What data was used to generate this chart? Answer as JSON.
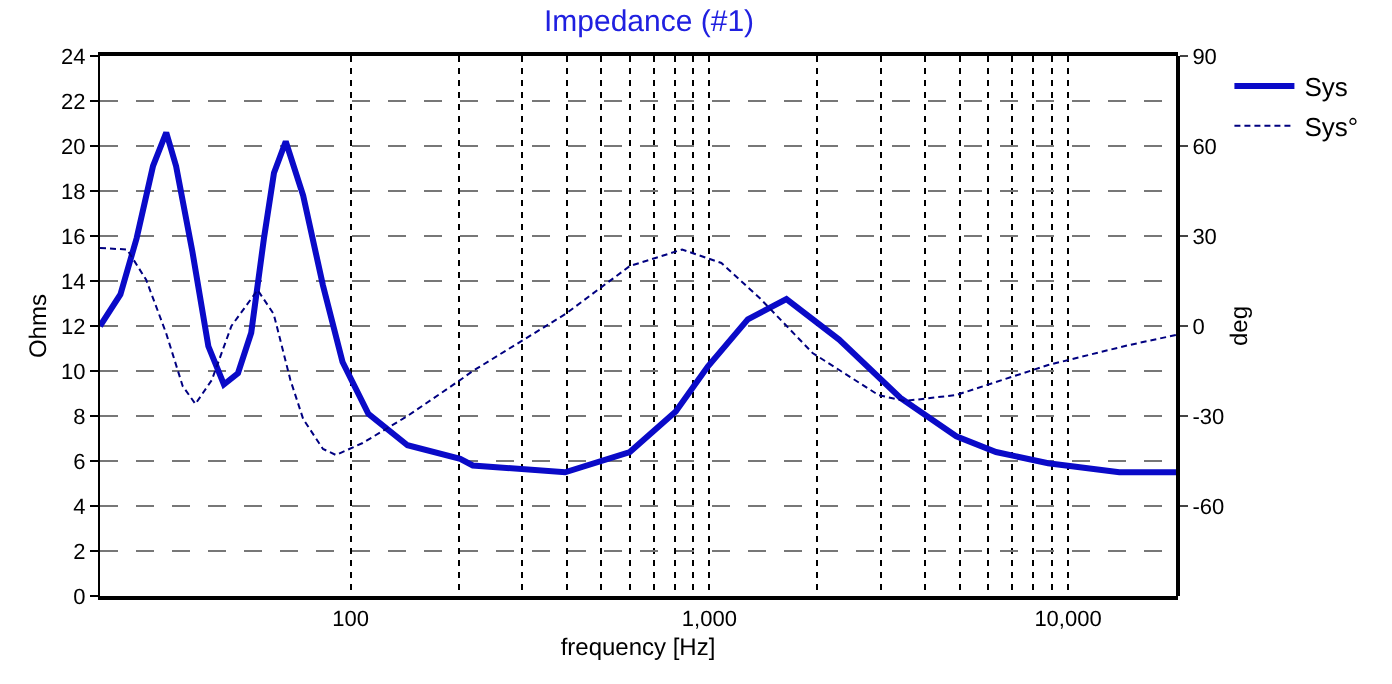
{
  "chart_data": {
    "type": "line",
    "title": "Impedance (#1)",
    "xlabel": "frequency [Hz]",
    "ylabel": "Ohms",
    "y2label": "deg",
    "log": "x",
    "grid": true,
    "legend": "top right",
    "xlim": [
      20,
      20000
    ],
    "xticks": [
      {
        "value": 100,
        "label": "100"
      },
      {
        "value": 1000,
        "label": "1,000"
      },
      {
        "value": 10000,
        "label": "10,000"
      }
    ],
    "ylim": [
      0,
      24
    ],
    "yticks": [
      0,
      2,
      4,
      6,
      8,
      10,
      12,
      14,
      16,
      18,
      20,
      22,
      24
    ],
    "y2lim": [
      -90,
      90
    ],
    "y2ticks": [
      -60,
      -30,
      0,
      30,
      60,
      90
    ],
    "series": [
      {
        "name": "Sys",
        "color": "#0a0ac8",
        "line_style": "solid",
        "x": [
          20,
          22.8,
          25.3,
          28.1,
          30.6,
          32.6,
          36.2,
          40.1,
          44.3,
          48.5,
          52.8,
          57.3,
          61.1,
          65.9,
          73.7,
          83.7,
          94.9,
          112,
          144,
          202,
          219,
          396,
          600,
          806,
          990,
          1280,
          1640,
          2300,
          3410,
          4880,
          6300,
          8800,
          13900,
          20000
        ],
        "values": [
          12.0,
          13.4,
          15.9,
          19.1,
          20.6,
          19.1,
          15.3,
          11.1,
          9.4,
          9.9,
          11.7,
          15.9,
          18.8,
          20.2,
          17.8,
          13.8,
          10.4,
          8.1,
          6.7,
          6.1,
          5.8,
          5.5,
          6.4,
          8.2,
          10.2,
          12.3,
          13.2,
          11.4,
          8.8,
          7.1,
          6.4,
          5.9,
          5.5,
          5.5
        ]
      },
      {
        "name": "Sys°",
        "color": "#000080",
        "line_style": "dashed",
        "axis": "y2",
        "x": [
          20,
          23.8,
          26.9,
          30.6,
          34,
          36.9,
          41,
          46.5,
          55,
          61,
          67.9,
          73.7,
          83.7,
          91,
          108,
          144,
          202,
          219,
          397,
          600,
          840,
          1080,
          1390,
          1940,
          2960,
          3500,
          4880,
          8800,
          14600,
          20000
        ],
        "values": [
          26,
          25.5,
          15.4,
          -2.5,
          -20,
          -26,
          -18,
          0,
          12,
          4,
          -18,
          -31,
          -41,
          -43,
          -39,
          -30,
          -18,
          -15,
          4,
          20,
          25.5,
          21,
          9,
          -9,
          -23,
          -25,
          -23,
          -13,
          -6.5,
          -3
        ]
      }
    ]
  }
}
